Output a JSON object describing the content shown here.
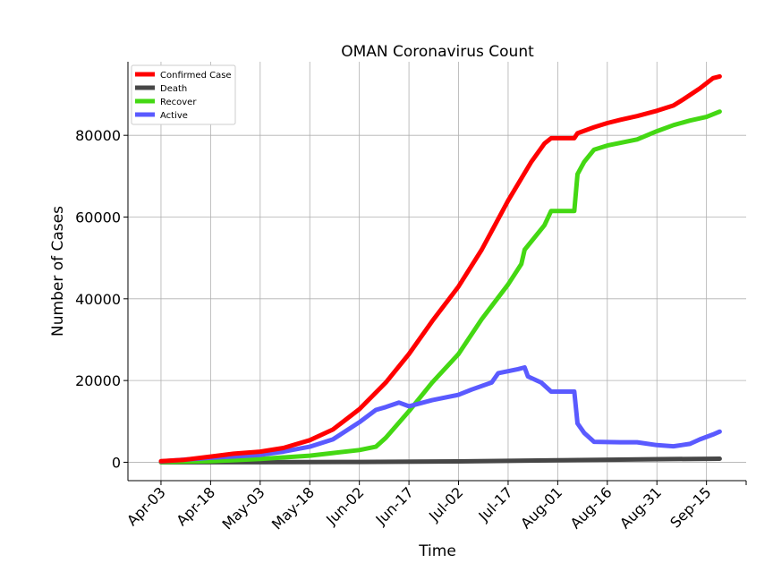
{
  "chart_data": {
    "type": "line",
    "title": "OMAN Coronavirus Count",
    "xlabel": "Time",
    "ylabel": "Number of Cases",
    "x_tick_labels": [
      "Apr-03",
      "Apr-18",
      "May-03",
      "May-18",
      "Jun-02",
      "Jun-17",
      "Jul-02",
      "Jul-17",
      "Aug-01",
      "Aug-16",
      "Aug-31",
      "Sep-15"
    ],
    "x_ticks": [
      "2020-04-03",
      "2020-04-18",
      "2020-05-03",
      "2020-05-18",
      "2020-06-02",
      "2020-06-17",
      "2020-07-02",
      "2020-07-17",
      "2020-08-01",
      "2020-08-16",
      "2020-08-31",
      "2020-09-15"
    ],
    "xlim": [
      "2020-03-24",
      "2020-09-27"
    ],
    "y_tick_labels": [
      "0",
      "20000",
      "40000",
      "60000",
      "80000"
    ],
    "y_ticks": [
      0,
      20000,
      40000,
      60000,
      80000
    ],
    "ylim": [
      -4500,
      98000
    ],
    "grid": true,
    "legend_position": "top-left",
    "series": [
      {
        "name": "Confirmed Case",
        "color": "#ff0000",
        "points": [
          [
            "2020-04-03",
            250
          ],
          [
            "2020-04-10",
            600
          ],
          [
            "2020-04-18",
            1400
          ],
          [
            "2020-04-25",
            2100
          ],
          [
            "2020-05-03",
            2600
          ],
          [
            "2020-05-10",
            3500
          ],
          [
            "2020-05-18",
            5400
          ],
          [
            "2020-05-25",
            8000
          ],
          [
            "2020-06-02",
            13000
          ],
          [
            "2020-06-10",
            19500
          ],
          [
            "2020-06-17",
            26500
          ],
          [
            "2020-06-24",
            34500
          ],
          [
            "2020-07-02",
            43000
          ],
          [
            "2020-07-09",
            52000
          ],
          [
            "2020-07-17",
            64000
          ],
          [
            "2020-07-24",
            73500
          ],
          [
            "2020-07-28",
            78000
          ],
          [
            "2020-07-30",
            79300
          ],
          [
            "2020-08-06",
            79300
          ],
          [
            "2020-08-07",
            80500
          ],
          [
            "2020-08-12",
            82000
          ],
          [
            "2020-08-16",
            83000
          ],
          [
            "2020-08-20",
            83800
          ],
          [
            "2020-08-25",
            84700
          ],
          [
            "2020-08-31",
            86000
          ],
          [
            "2020-09-05",
            87300
          ],
          [
            "2020-09-08",
            88800
          ],
          [
            "2020-09-13",
            91500
          ],
          [
            "2020-09-17",
            94000
          ],
          [
            "2020-09-19",
            94400
          ]
        ]
      },
      {
        "name": "Death",
        "color": "#464646",
        "points": [
          [
            "2020-04-03",
            0
          ],
          [
            "2020-05-03",
            12
          ],
          [
            "2020-06-02",
            70
          ],
          [
            "2020-07-02",
            200
          ],
          [
            "2020-08-01",
            480
          ],
          [
            "2020-09-01",
            750
          ],
          [
            "2020-09-19",
            860
          ]
        ]
      },
      {
        "name": "Recover",
        "color": "#44d813",
        "points": [
          [
            "2020-04-03",
            50
          ],
          [
            "2020-04-18",
            250
          ],
          [
            "2020-05-03",
            800
          ],
          [
            "2020-05-18",
            1600
          ],
          [
            "2020-06-02",
            3000
          ],
          [
            "2020-06-07",
            3800
          ],
          [
            "2020-06-10",
            6000
          ],
          [
            "2020-06-17",
            12500
          ],
          [
            "2020-06-24",
            19500
          ],
          [
            "2020-07-02",
            26500
          ],
          [
            "2020-07-09",
            35000
          ],
          [
            "2020-07-17",
            43500
          ],
          [
            "2020-07-21",
            48500
          ],
          [
            "2020-07-22",
            52000
          ],
          [
            "2020-07-28",
            58000
          ],
          [
            "2020-07-30",
            61500
          ],
          [
            "2020-08-06",
            61500
          ],
          [
            "2020-08-07",
            70500
          ],
          [
            "2020-08-09",
            73500
          ],
          [
            "2020-08-12",
            76500
          ],
          [
            "2020-08-16",
            77500
          ],
          [
            "2020-08-25",
            79000
          ],
          [
            "2020-08-31",
            81000
          ],
          [
            "2020-09-05",
            82500
          ],
          [
            "2020-09-10",
            83600
          ],
          [
            "2020-09-15",
            84500
          ],
          [
            "2020-09-19",
            85800
          ]
        ]
      },
      {
        "name": "Active",
        "color": "#5a5aff",
        "points": [
          [
            "2020-04-03",
            200
          ],
          [
            "2020-04-18",
            1100
          ],
          [
            "2020-05-03",
            1800
          ],
          [
            "2020-05-10",
            2600
          ],
          [
            "2020-05-18",
            3800
          ],
          [
            "2020-05-25",
            5600
          ],
          [
            "2020-06-02",
            9800
          ],
          [
            "2020-06-07",
            12800
          ],
          [
            "2020-06-10",
            13500
          ],
          [
            "2020-06-14",
            14600
          ],
          [
            "2020-06-17",
            13700
          ],
          [
            "2020-06-24",
            15200
          ],
          [
            "2020-07-02",
            16500
          ],
          [
            "2020-07-06",
            17800
          ],
          [
            "2020-07-12",
            19500
          ],
          [
            "2020-07-14",
            21800
          ],
          [
            "2020-07-20",
            22800
          ],
          [
            "2020-07-22",
            23200
          ],
          [
            "2020-07-23",
            21000
          ],
          [
            "2020-07-27",
            19500
          ],
          [
            "2020-07-30",
            17300
          ],
          [
            "2020-08-06",
            17300
          ],
          [
            "2020-08-07",
            9500
          ],
          [
            "2020-08-09",
            7200
          ],
          [
            "2020-08-12",
            5000
          ],
          [
            "2020-08-20",
            4900
          ],
          [
            "2020-08-25",
            4900
          ],
          [
            "2020-08-31",
            4200
          ],
          [
            "2020-09-05",
            3900
          ],
          [
            "2020-09-10",
            4500
          ],
          [
            "2020-09-13",
            5600
          ],
          [
            "2020-09-17",
            6800
          ],
          [
            "2020-09-19",
            7500
          ]
        ]
      }
    ]
  }
}
